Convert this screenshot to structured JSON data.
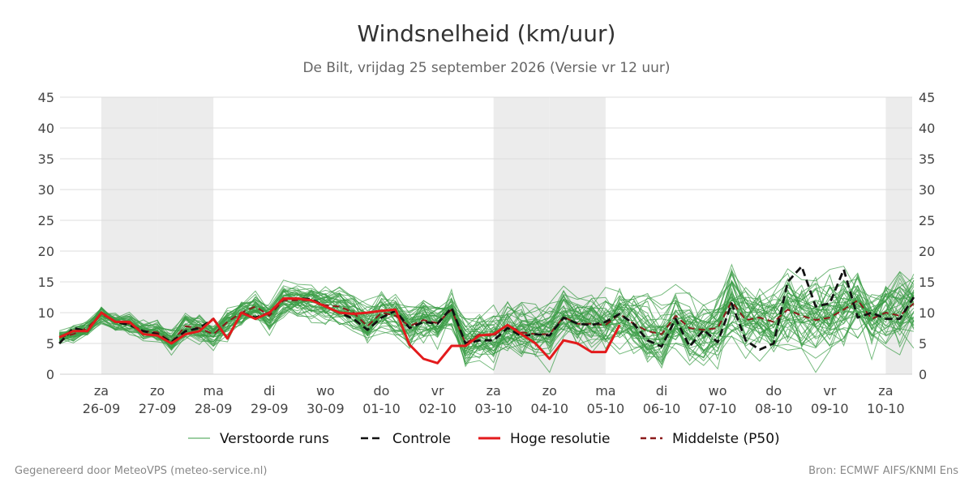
{
  "header": {
    "title": "Windsnelheid (km/uur)",
    "subtitle": "De Bilt, vrijdag 25 september 2026 (Versie vr 12 uur)"
  },
  "footer": {
    "left": "Gegenereerd door MeteoVPS (meteo-service.nl)",
    "right": "Bron: ECMWF AIFS/KNMI Ens"
  },
  "chart_data": {
    "type": "line",
    "ylim": [
      0,
      45
    ],
    "yticks": [
      0,
      5,
      10,
      15,
      20,
      25,
      30,
      35,
      40,
      45
    ],
    "grid": true,
    "weekend_shading": true,
    "days": [
      {
        "day": "za",
        "date": "26-09",
        "weekend": true
      },
      {
        "day": "zo",
        "date": "27-09",
        "weekend": true
      },
      {
        "day": "ma",
        "date": "28-09",
        "weekend": false
      },
      {
        "day": "di",
        "date": "29-09",
        "weekend": false
      },
      {
        "day": "wo",
        "date": "30-09",
        "weekend": false
      },
      {
        "day": "do",
        "date": "01-10",
        "weekend": false
      },
      {
        "day": "vr",
        "date": "02-10",
        "weekend": false
      },
      {
        "day": "za",
        "date": "03-10",
        "weekend": true
      },
      {
        "day": "zo",
        "date": "04-10",
        "weekend": true
      },
      {
        "day": "ma",
        "date": "05-10",
        "weekend": false
      },
      {
        "day": "di",
        "date": "06-10",
        "weekend": false
      },
      {
        "day": "wo",
        "date": "07-10",
        "weekend": false
      },
      {
        "day": "do",
        "date": "08-10",
        "weekend": false
      },
      {
        "day": "vr",
        "date": "09-10",
        "weekend": false
      },
      {
        "day": "za",
        "date": "10-10",
        "weekend": true
      }
    ],
    "x_start_day": -0.75,
    "x_step_days": 0.25,
    "legend": [
      {
        "name": "Verstoorde runs",
        "color": "#3a9d46",
        "style": "thin"
      },
      {
        "name": "Controle",
        "color": "#111111",
        "style": "dashed"
      },
      {
        "name": "Hoge resolutie",
        "color": "#e31a1c",
        "style": "solid"
      },
      {
        "name": "Middelste (P50)",
        "color": "#8b1a1a",
        "style": "dashed"
      }
    ],
    "series": [
      {
        "color": "#e31a1c",
        "values": [
          6,
          7,
          7,
          10,
          8.5,
          8.5,
          6.5,
          6.3,
          5,
          6.5,
          7,
          9,
          5.8,
          10,
          9,
          10,
          12.3,
          12.3,
          12,
          11,
          10,
          9.8,
          10,
          10.3,
          10.5,
          4.8,
          2.5,
          1.8,
          4.6,
          4.6,
          6.3,
          6.5,
          8,
          6.5,
          5,
          2.5,
          5.5,
          5,
          3.6,
          3.6,
          8
        ]
      },
      {
        "color": "#111111",
        "values": [
          5,
          7.5,
          7,
          10,
          8.5,
          8,
          7,
          6.5,
          5.2,
          7,
          7.5,
          9,
          5.8,
          10,
          9.2,
          10,
          12.3,
          12.3,
          12.2,
          11,
          10,
          9,
          7.2,
          9.2,
          10.3,
          7.5,
          8.5,
          8.2,
          10.8,
          5,
          5.5,
          5.5,
          7.5,
          6.2,
          6.5,
          6.3,
          9.2,
          8.2,
          8,
          8.5,
          9.8,
          8.2,
          5.5,
          4.5,
          9,
          4.5,
          7.2,
          5.2,
          11.5,
          5.5,
          4,
          5,
          15,
          17.5,
          11,
          11.5,
          17,
          9.2,
          10,
          9,
          9,
          12.5
        ]
      },
      {
        "color": "#8b1a1a",
        "values": [
          6,
          6.5,
          7.5,
          9.8,
          8.5,
          8.2,
          7,
          6.8,
          5.2,
          7.8,
          7.5,
          6.5,
          8.5,
          10,
          11,
          9.5,
          12,
          12,
          12,
          11.2,
          11,
          10,
          7.8,
          10,
          9.5,
          7.8,
          8.8,
          8.3,
          10.5,
          5,
          6.5,
          6.2,
          8,
          6.8,
          6.5,
          6.5,
          9.3,
          8.2,
          8.2,
          8,
          9.8,
          8.2,
          7,
          6.5,
          9.5,
          7.5,
          7.2,
          7.5,
          11.8,
          8.8,
          9.2,
          8.5,
          10.5,
          9.5,
          8.8,
          9.2,
          10.5,
          12,
          9,
          10,
          9.5,
          11.5
        ]
      }
    ]
  }
}
